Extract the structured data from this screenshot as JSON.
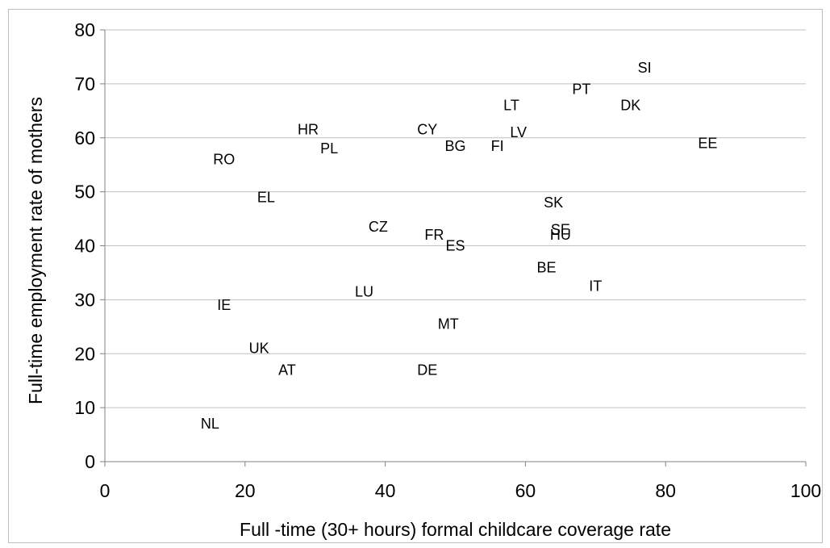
{
  "chart_data": {
    "type": "scatter",
    "title": "",
    "xlabel": "Full -time (30+ hours) formal childcare coverage rate",
    "ylabel": "Full-time employment rate of mothers",
    "xlim": [
      0,
      100
    ],
    "ylim": [
      0,
      80
    ],
    "xticks": [
      "0",
      "20",
      "40",
      "60",
      "80",
      "100"
    ],
    "yticks": [
      "0",
      "10",
      "20",
      "30",
      "40",
      "50",
      "60",
      "70",
      "80"
    ],
    "grid": "horizontal",
    "legend": "none",
    "points": [
      {
        "label": "SI",
        "x": 77,
        "y": 73
      },
      {
        "label": "PT",
        "x": 68,
        "y": 69
      },
      {
        "label": "DK",
        "x": 75,
        "y": 66
      },
      {
        "label": "LT",
        "x": 58,
        "y": 66
      },
      {
        "label": "HR",
        "x": 29,
        "y": 61.5
      },
      {
        "label": "CY",
        "x": 46,
        "y": 61.5
      },
      {
        "label": "LV",
        "x": 59,
        "y": 61
      },
      {
        "label": "BG",
        "x": 50,
        "y": 58.5
      },
      {
        "label": "FI",
        "x": 56,
        "y": 58.5
      },
      {
        "label": "PL",
        "x": 32,
        "y": 58
      },
      {
        "label": "EE",
        "x": 86,
        "y": 59
      },
      {
        "label": "RO",
        "x": 17,
        "y": 56
      },
      {
        "label": "EL",
        "x": 23,
        "y": 49
      },
      {
        "label": "SK",
        "x": 64,
        "y": 48
      },
      {
        "label": "CZ",
        "x": 39,
        "y": 43.5
      },
      {
        "label": "SE",
        "x": 65,
        "y": 43
      },
      {
        "label": "HU",
        "x": 65,
        "y": 42
      },
      {
        "label": "FR",
        "x": 47,
        "y": 42
      },
      {
        "label": "ES",
        "x": 50,
        "y": 40
      },
      {
        "label": "BE",
        "x": 63,
        "y": 36
      },
      {
        "label": "IT",
        "x": 70,
        "y": 32.5
      },
      {
        "label": "LU",
        "x": 37,
        "y": 31.5
      },
      {
        "label": "IE",
        "x": 17,
        "y": 29
      },
      {
        "label": "MT",
        "x": 49,
        "y": 25.5
      },
      {
        "label": "UK",
        "x": 22,
        "y": 21
      },
      {
        "label": "AT",
        "x": 26,
        "y": 17
      },
      {
        "label": "DE",
        "x": 46,
        "y": 17
      },
      {
        "label": "NL",
        "x": 15,
        "y": 7
      }
    ]
  },
  "colors": {
    "grid": "#c0c0c0",
    "axis": "#808080",
    "text": "#000000"
  }
}
